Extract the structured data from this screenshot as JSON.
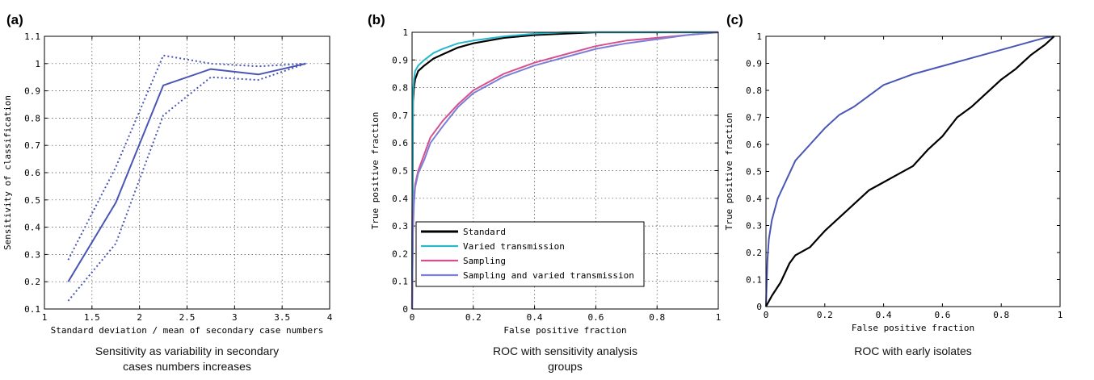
{
  "chart_data": [
    {
      "type": "line",
      "panel_label": "(a)",
      "xlabel": "Standard deviation / mean of secondary case numbers",
      "ylabel": "Sensitivity of classification",
      "caption": [
        "Sensitivity as variability in secondary",
        "cases numbers increases"
      ],
      "xlim": [
        1,
        4
      ],
      "ylim": [
        0.1,
        1.1
      ],
      "xticks": [
        "1",
        "1.5",
        "2",
        "2.5",
        "3",
        "3.5",
        "4"
      ],
      "yticks": [
        "0.1",
        "0.2",
        "0.3",
        "0.4",
        "0.5",
        "0.6",
        "0.7",
        "0.8",
        "0.9",
        "1",
        "1.1"
      ],
      "grid": true,
      "series": [
        {
          "style": "solid",
          "color": "#4a56b5",
          "x": [
            1.25,
            1.75,
            2.25,
            2.75,
            3.25,
            3.75
          ],
          "y": [
            0.2,
            0.49,
            0.92,
            0.98,
            0.96,
            1.0
          ]
        },
        {
          "style": "dotted",
          "color": "#4a56b5",
          "x": [
            1.25,
            1.75,
            2.25,
            2.75,
            3.25,
            3.75
          ],
          "y": [
            0.28,
            0.62,
            1.03,
            1.0,
            0.99,
            1.0
          ]
        },
        {
          "style": "dotted",
          "color": "#4a56b5",
          "x": [
            1.25,
            1.75,
            2.25,
            2.75,
            3.25,
            3.75
          ],
          "y": [
            0.13,
            0.34,
            0.81,
            0.95,
            0.94,
            1.0
          ]
        }
      ]
    },
    {
      "type": "line",
      "panel_label": "(b)",
      "xlabel": "False positive fraction",
      "ylabel": "True positive fraction",
      "caption": [
        "ROC with sensitivity analysis",
        "groups"
      ],
      "xlim": [
        0,
        1
      ],
      "ylim": [
        0,
        1
      ],
      "xticks": [
        "0",
        "0.2",
        "0.4",
        "0.6",
        "0.8",
        "1"
      ],
      "yticks": [
        "0",
        "0.1",
        "0.2",
        "0.3",
        "0.4",
        "0.5",
        "0.6",
        "0.7",
        "0.8",
        "0.9",
        "1"
      ],
      "grid": true,
      "legend": "lower-left",
      "legend_labels": [
        "Standard",
        "Varied transmission",
        "Sampling",
        "Sampling and varied transmission"
      ],
      "series": [
        {
          "name": "Standard",
          "color": "#000000",
          "x": [
            0,
            0.003,
            0.006,
            0.01,
            0.02,
            0.04,
            0.07,
            0.1,
            0.15,
            0.2,
            0.3,
            0.4,
            0.5,
            0.6,
            0.8,
            1.0
          ],
          "y": [
            0,
            0.75,
            0.8,
            0.83,
            0.86,
            0.88,
            0.905,
            0.92,
            0.945,
            0.96,
            0.98,
            0.99,
            0.995,
            1.0,
            1.0,
            1.0
          ]
        },
        {
          "name": "Varied transmission",
          "color": "#27b8cc",
          "x": [
            0,
            0.003,
            0.006,
            0.01,
            0.02,
            0.04,
            0.07,
            0.1,
            0.15,
            0.2,
            0.3,
            0.4,
            0.5,
            0.6,
            1.0
          ],
          "y": [
            0,
            0.78,
            0.83,
            0.86,
            0.88,
            0.9,
            0.925,
            0.94,
            0.96,
            0.97,
            0.985,
            0.995,
            1.0,
            1.0,
            1.0
          ]
        },
        {
          "name": "Sampling",
          "color": "#d6508f",
          "x": [
            0,
            0.003,
            0.006,
            0.01,
            0.02,
            0.04,
            0.06,
            0.1,
            0.15,
            0.2,
            0.3,
            0.4,
            0.5,
            0.6,
            0.7,
            0.8,
            0.9,
            1.0
          ],
          "y": [
            0,
            0.3,
            0.4,
            0.45,
            0.5,
            0.56,
            0.62,
            0.68,
            0.74,
            0.79,
            0.85,
            0.89,
            0.92,
            0.95,
            0.97,
            0.98,
            0.99,
            1.0
          ]
        },
        {
          "name": "Sampling and varied transmission",
          "color": "#7c7fd6",
          "x": [
            0,
            0.003,
            0.006,
            0.01,
            0.02,
            0.04,
            0.06,
            0.1,
            0.15,
            0.2,
            0.3,
            0.4,
            0.5,
            0.6,
            0.7,
            0.8,
            0.9,
            1.0
          ],
          "y": [
            0,
            0.28,
            0.38,
            0.44,
            0.49,
            0.54,
            0.6,
            0.66,
            0.73,
            0.78,
            0.84,
            0.88,
            0.91,
            0.94,
            0.96,
            0.975,
            0.99,
            1.0
          ]
        }
      ]
    },
    {
      "type": "line",
      "panel_label": "(c)",
      "xlabel": "False positive fraction",
      "ylabel": "True positive fraction",
      "caption": [
        "ROC with early isolates"
      ],
      "xlim": [
        0,
        1
      ],
      "ylim": [
        0,
        1
      ],
      "xticks": [
        "0",
        "0.2",
        "0.4",
        "0.6",
        "0.8",
        "1"
      ],
      "yticks": [
        "0",
        "0.1",
        "0.2",
        "0.3",
        "0.4",
        "0.5",
        "0.6",
        "0.7",
        "0.8",
        "0.9",
        "1"
      ],
      "grid": false,
      "series": [
        {
          "color": "#4a56b5",
          "x": [
            0,
            0.005,
            0.01,
            0.02,
            0.04,
            0.07,
            0.1,
            0.15,
            0.2,
            0.25,
            0.3,
            0.35,
            0.4,
            0.5,
            0.6,
            0.7,
            0.8,
            0.9,
            0.95,
            0.98
          ],
          "y": [
            0,
            0.17,
            0.25,
            0.32,
            0.4,
            0.47,
            0.54,
            0.6,
            0.66,
            0.71,
            0.74,
            0.78,
            0.82,
            0.86,
            0.89,
            0.92,
            0.95,
            0.98,
            0.995,
            1.0
          ]
        },
        {
          "color": "#000000",
          "x": [
            0,
            0.02,
            0.05,
            0.08,
            0.1,
            0.15,
            0.2,
            0.25,
            0.3,
            0.35,
            0.4,
            0.45,
            0.5,
            0.55,
            0.6,
            0.65,
            0.7,
            0.75,
            0.8,
            0.85,
            0.9,
            0.95,
            0.98
          ],
          "y": [
            0,
            0.04,
            0.09,
            0.16,
            0.19,
            0.22,
            0.28,
            0.33,
            0.38,
            0.43,
            0.46,
            0.49,
            0.52,
            0.58,
            0.63,
            0.7,
            0.74,
            0.79,
            0.84,
            0.88,
            0.93,
            0.97,
            1.0
          ]
        }
      ]
    }
  ]
}
